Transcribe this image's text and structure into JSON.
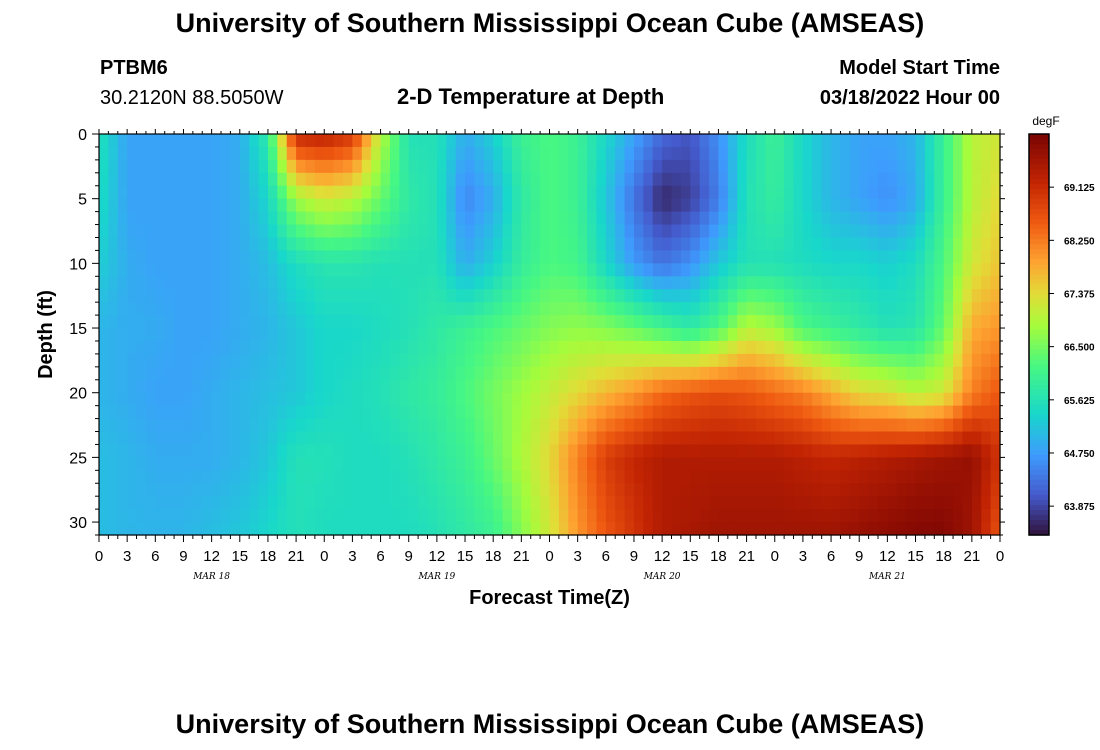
{
  "header": {
    "title": "University of Southern Mississippi Ocean Cube (AMSEAS)",
    "station": "PTBM6",
    "coords": "30.2120N  88.5050W",
    "chart_title": "2-D Temperature at Depth",
    "model_start_label": "Model Start Time",
    "model_start_value": "03/18/2022 Hour 00"
  },
  "footer": {
    "title": "University of Southern Mississippi Ocean Cube (AMSEAS)"
  },
  "chart_data": {
    "type": "heatmap",
    "title": "2-D Temperature at Depth",
    "xlabel": "Forecast Time(Z)",
    "ylabel": "Depth (ft)",
    "units": "degF",
    "x_hours": [
      0,
      3,
      6,
      9,
      12,
      15,
      18,
      21,
      24,
      27,
      30,
      33,
      36,
      39,
      42,
      45,
      48,
      51,
      54,
      57,
      60,
      63,
      66,
      69,
      72,
      75,
      78,
      81,
      84,
      87,
      90,
      93,
      96
    ],
    "x_tick_labels": [
      "0",
      "3",
      "6",
      "9",
      "12",
      "15",
      "18",
      "21",
      "0",
      "3",
      "6",
      "9",
      "12",
      "15",
      "18",
      "21",
      "0",
      "3",
      "6",
      "9",
      "12",
      "15",
      "18",
      "21",
      "0",
      "3",
      "6",
      "9",
      "12",
      "15",
      "18",
      "21",
      "0"
    ],
    "date_labels": [
      {
        "text": "MAR 18",
        "hour": 12
      },
      {
        "text": "MAR 19",
        "hour": 36
      },
      {
        "text": "MAR 20",
        "hour": 60
      },
      {
        "text": "MAR 21",
        "hour": 84
      }
    ],
    "ylim": [
      0,
      31
    ],
    "y_ticks": [
      0,
      5,
      10,
      15,
      20,
      25,
      30
    ],
    "depths": [
      0,
      5,
      10,
      15,
      20,
      25,
      31
    ],
    "colorbar": {
      "label": "degF",
      "range": [
        63.4,
        70.0
      ],
      "ticks": [
        63.875,
        64.75,
        65.625,
        66.5,
        67.375,
        68.25,
        69.125
      ],
      "tick_labels": [
        "63.875",
        "64.750",
        "65.625",
        "66.500",
        "67.375",
        "68.250",
        "69.125"
      ]
    },
    "values": [
      [
        65.6,
        64.8,
        64.8,
        64.8,
        64.8,
        64.9,
        65.8,
        69.2,
        69.3,
        69.0,
        67.0,
        65.6,
        65.6,
        64.9,
        65.3,
        66.0,
        66.2,
        66.0,
        65.4,
        64.8,
        64.2,
        64.0,
        64.6,
        65.5,
        66.0,
        65.4,
        65.0,
        64.8,
        64.8,
        65.0,
        66.0,
        67.0,
        67.2
      ],
      [
        65.5,
        64.8,
        64.8,
        64.8,
        64.8,
        64.9,
        65.4,
        66.8,
        67.2,
        67.0,
        66.4,
        65.8,
        65.6,
        64.5,
        64.9,
        65.8,
        66.2,
        66.0,
        65.2,
        64.3,
        63.6,
        63.8,
        64.4,
        65.6,
        65.9,
        65.4,
        65.0,
        64.8,
        64.6,
        64.9,
        66.0,
        67.0,
        67.4
      ],
      [
        65.3,
        64.9,
        64.8,
        64.8,
        64.8,
        64.9,
        65.1,
        65.5,
        65.7,
        65.7,
        65.6,
        65.6,
        65.6,
        64.9,
        65.3,
        65.9,
        66.2,
        66.1,
        65.4,
        64.7,
        64.3,
        64.6,
        65.2,
        65.6,
        65.6,
        65.5,
        65.4,
        65.4,
        65.3,
        65.5,
        66.2,
        67.2,
        67.6
      ],
      [
        65.0,
        64.9,
        64.9,
        64.8,
        64.8,
        64.9,
        65.0,
        65.2,
        65.4,
        65.4,
        65.5,
        65.6,
        65.8,
        66.0,
        66.2,
        66.4,
        66.6,
        66.7,
        66.6,
        66.4,
        66.1,
        65.8,
        66.2,
        67.0,
        66.8,
        66.2,
        66.0,
        65.8,
        65.6,
        65.7,
        66.4,
        67.8,
        68.0
      ],
      [
        65.0,
        64.9,
        64.8,
        64.8,
        64.9,
        65.0,
        65.1,
        65.2,
        65.4,
        65.5,
        65.6,
        65.8,
        65.9,
        66.2,
        66.5,
        66.8,
        67.1,
        67.4,
        67.7,
        68.0,
        68.4,
        68.6,
        68.7,
        68.6,
        68.4,
        68.2,
        67.8,
        67.4,
        67.3,
        67.0,
        67.2,
        68.2,
        68.6
      ],
      [
        65.1,
        65.0,
        64.9,
        64.9,
        64.9,
        65.0,
        65.2,
        65.6,
        65.6,
        65.5,
        65.5,
        65.6,
        65.8,
        66.0,
        66.4,
        66.9,
        67.4,
        68.2,
        68.9,
        69.2,
        69.4,
        69.4,
        69.4,
        69.4,
        69.4,
        69.3,
        69.2,
        69.3,
        69.4,
        69.5,
        69.6,
        69.7,
        69.0
      ],
      [
        65.1,
        65.0,
        65.0,
        65.0,
        65.1,
        65.2,
        65.4,
        65.6,
        65.5,
        65.5,
        65.5,
        65.5,
        65.6,
        65.8,
        66.0,
        66.6,
        67.2,
        68.0,
        68.6,
        69.0,
        69.4,
        69.5,
        69.6,
        69.6,
        69.6,
        69.6,
        69.6,
        69.7,
        69.8,
        69.9,
        69.9,
        69.6,
        68.6
      ]
    ]
  }
}
